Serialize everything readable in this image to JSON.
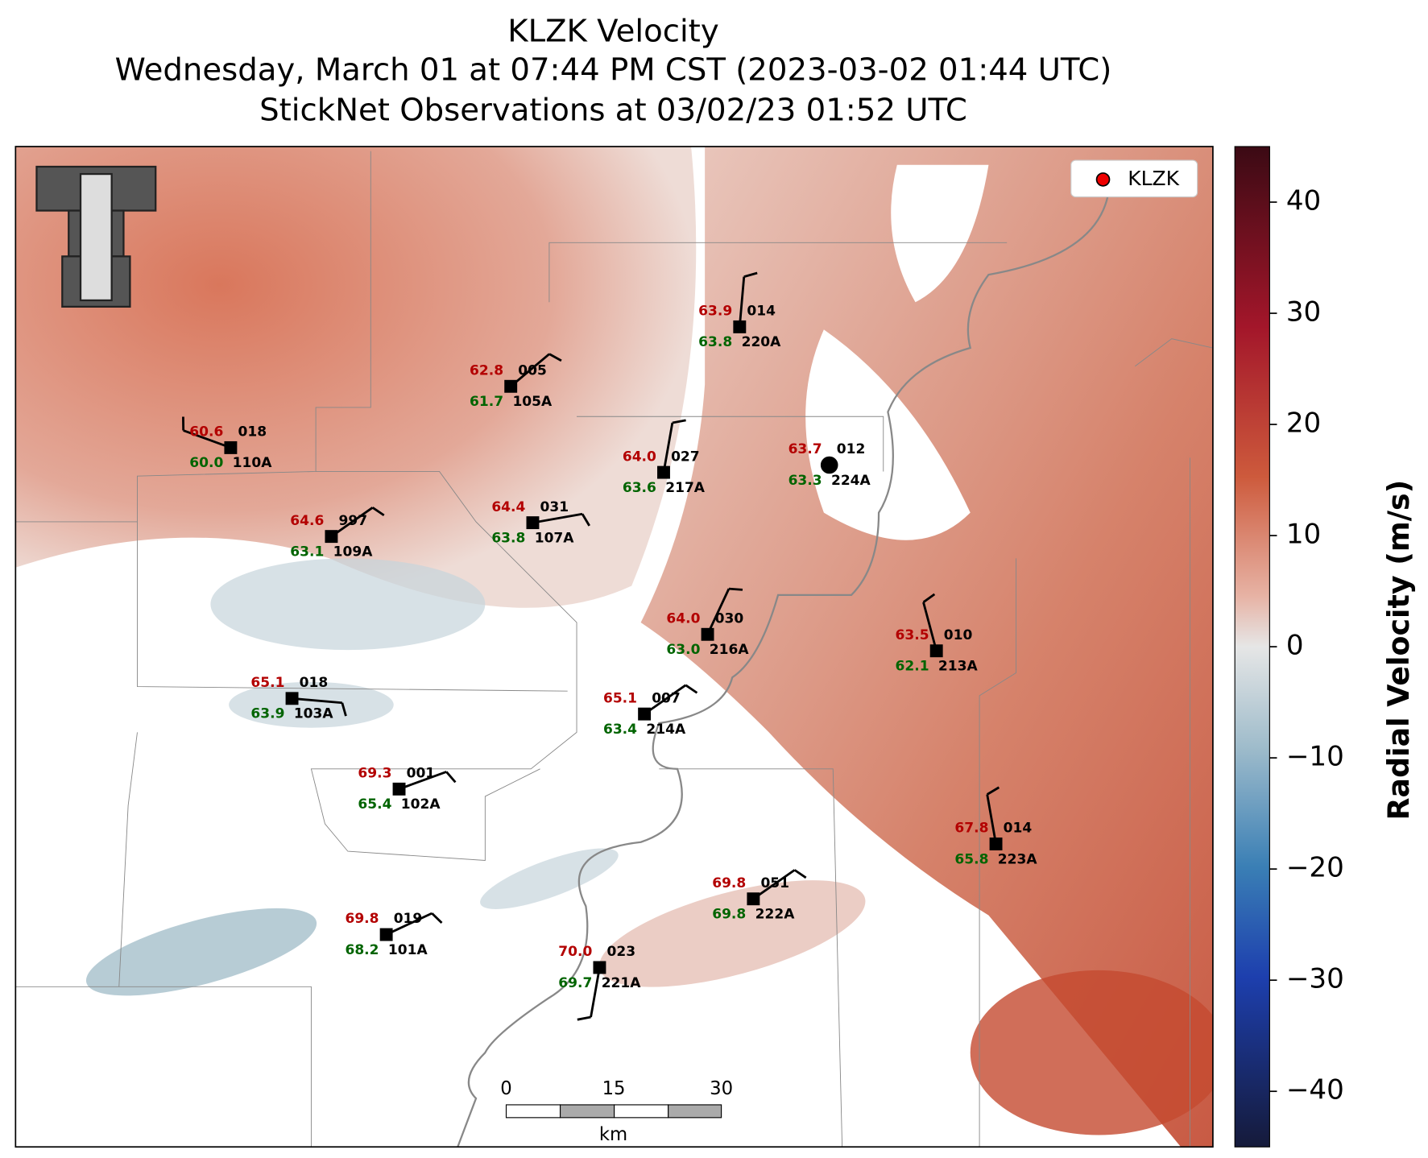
{
  "header": {
    "title_lines": [
      "KLZK Velocity",
      "Wednesday, March 01 at 07:44 PM CST (2023-03-02 01:44 UTC)",
      "StickNet Observations at 03/02/23 01:52 UTC"
    ]
  },
  "legend": {
    "label": "KLZK"
  },
  "stations": [
    {
      "temp": "60.6",
      "pressure": "018",
      "dewpoint": "60.0",
      "id": "110A"
    },
    {
      "temp": "62.8",
      "pressure": "005",
      "dewpoint": "61.7",
      "id": "105A"
    },
    {
      "temp": "63.9",
      "pressure": "014",
      "dewpoint": "63.8",
      "id": "220A"
    },
    {
      "temp": "64.0",
      "pressure": "027",
      "dewpoint": "63.6",
      "id": "217A"
    },
    {
      "temp": "63.7",
      "pressure": "012",
      "dewpoint": "63.3",
      "id": "224A"
    },
    {
      "temp": "64.6",
      "pressure": "997",
      "dewpoint": "63.1",
      "id": "109A"
    },
    {
      "temp": "64.4",
      "pressure": "031",
      "dewpoint": "63.8",
      "id": "107A"
    },
    {
      "temp": "64.0",
      "pressure": "030",
      "dewpoint": "63.0",
      "id": "216A"
    },
    {
      "temp": "63.5",
      "pressure": "010",
      "dewpoint": "62.1",
      "id": "213A"
    },
    {
      "temp": "65.1",
      "pressure": "018",
      "dewpoint": "63.9",
      "id": "103A"
    },
    {
      "temp": "65.1",
      "pressure": "007",
      "dewpoint": "63.4",
      "id": "214A"
    },
    {
      "temp": "69.3",
      "pressure": "001",
      "dewpoint": "65.4",
      "id": "102A"
    },
    {
      "temp": "67.8",
      "pressure": "014",
      "dewpoint": "65.8",
      "id": "223A"
    },
    {
      "temp": "69.8",
      "pressure": "051",
      "dewpoint": "69.8",
      "id": "222A"
    },
    {
      "temp": "69.8",
      "pressure": "019",
      "dewpoint": "68.2",
      "id": "101A"
    },
    {
      "temp": "70.0",
      "pressure": "023",
      "dewpoint": "69.7",
      "id": "221A"
    }
  ],
  "colorbar": {
    "label": "Radial Velocity (m/s)",
    "range": [
      -45,
      45
    ],
    "ticks": [
      40,
      30,
      20,
      10,
      0,
      {
        "value": -10,
        "label": "−10"
      },
      {
        "value": -20,
        "label": "−20"
      },
      {
        "value": -30,
        "label": "−30"
      },
      {
        "value": -40,
        "label": "−40"
      }
    ]
  },
  "scale_bar": {
    "ticks": [
      0,
      15,
      30
    ],
    "unit": "km"
  }
}
